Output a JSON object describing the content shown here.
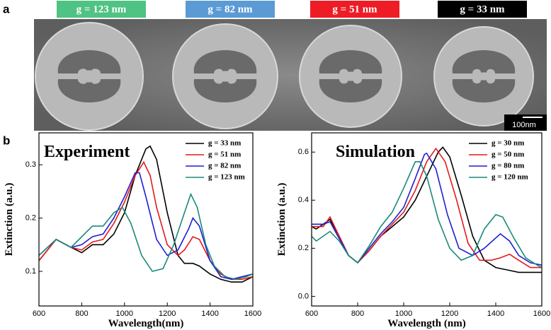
{
  "panel_labels": [
    "a",
    "b"
  ],
  "sem": {
    "labels": [
      {
        "text": "g = 123 nm",
        "color": "#4fc383"
      },
      {
        "text": "g = 82 nm",
        "color": "#5b9bd5"
      },
      {
        "text": "g = 51 nm",
        "color": "#ee1c25"
      },
      {
        "text": "g = 33 nm",
        "color": "#000000"
      }
    ],
    "scale_bar": "100nm"
  },
  "chart_data": [
    {
      "type": "line",
      "title": "Experiment",
      "x_label": "Wavelength(nm)",
      "y_label": "Extinction (a.u.)",
      "xlim": [
        600,
        1600
      ],
      "xticks": [
        600,
        800,
        1000,
        1200,
        1400,
        1600
      ],
      "ylim": [
        0.035,
        0.36
      ],
      "yticks": [
        0.1,
        0.2,
        0.3
      ],
      "series": [
        {
          "name": "g = 33 nm",
          "color": "#000000",
          "x": [
            600,
            680,
            750,
            800,
            850,
            900,
            950,
            1000,
            1050,
            1100,
            1120,
            1150,
            1200,
            1250,
            1280,
            1320,
            1350,
            1400,
            1450,
            1500,
            1550,
            1600
          ],
          "values": [
            0.12,
            0.16,
            0.145,
            0.135,
            0.15,
            0.15,
            0.17,
            0.21,
            0.28,
            0.33,
            0.335,
            0.31,
            0.21,
            0.13,
            0.115,
            0.115,
            0.11,
            0.095,
            0.085,
            0.08,
            0.08,
            0.09
          ]
        },
        {
          "name": "g = 51 nm",
          "color": "#e31a1c",
          "x": [
            600,
            680,
            750,
            800,
            850,
            900,
            950,
            1000,
            1050,
            1090,
            1120,
            1150,
            1200,
            1250,
            1280,
            1320,
            1350,
            1400,
            1450,
            1500,
            1550,
            1600
          ],
          "values": [
            0.12,
            0.16,
            0.145,
            0.14,
            0.155,
            0.16,
            0.19,
            0.23,
            0.28,
            0.305,
            0.28,
            0.22,
            0.15,
            0.13,
            0.14,
            0.165,
            0.16,
            0.12,
            0.095,
            0.085,
            0.085,
            0.09
          ]
        },
        {
          "name": "g = 82 nm",
          "color": "#1f1fd0",
          "x": [
            600,
            680,
            750,
            800,
            850,
            900,
            950,
            1000,
            1050,
            1070,
            1100,
            1150,
            1200,
            1250,
            1300,
            1320,
            1350,
            1400,
            1450,
            1500,
            1550,
            1600
          ],
          "values": [
            0.13,
            0.16,
            0.145,
            0.15,
            0.165,
            0.17,
            0.2,
            0.24,
            0.285,
            0.285,
            0.24,
            0.16,
            0.13,
            0.14,
            0.18,
            0.2,
            0.185,
            0.12,
            0.09,
            0.085,
            0.09,
            0.095
          ]
        },
        {
          "name": "g = 123 nm",
          "color": "#1a8a7a",
          "x": [
            600,
            680,
            750,
            800,
            850,
            900,
            950,
            990,
            1030,
            1080,
            1130,
            1180,
            1230,
            1280,
            1310,
            1340,
            1380,
            1420,
            1470,
            1520,
            1570,
            1600
          ],
          "values": [
            0.13,
            0.16,
            0.145,
            0.165,
            0.185,
            0.185,
            0.21,
            0.22,
            0.19,
            0.13,
            0.1,
            0.105,
            0.15,
            0.21,
            0.245,
            0.22,
            0.15,
            0.11,
            0.09,
            0.085,
            0.09,
            0.095
          ]
        }
      ]
    },
    {
      "type": "line",
      "title": "Simulation",
      "x_label": "Wavelength (nm)",
      "y_label": "Extinction (a.u.)",
      "xlim": [
        600,
        1600
      ],
      "xticks": [
        600,
        800,
        1000,
        1200,
        1400,
        1600
      ],
      "ylim": [
        -0.04,
        0.68
      ],
      "yticks": [
        {
          "value": 0,
          "label": "0.0"
        },
        0.2,
        0.4,
        0.6
      ],
      "series": [
        {
          "name": "g = 30 nm",
          "color": "#000000",
          "x": [
            600,
            620,
            650,
            680,
            720,
            760,
            800,
            850,
            900,
            950,
            1000,
            1050,
            1100,
            1150,
            1170,
            1200,
            1250,
            1300,
            1350,
            1400,
            1450,
            1500,
            1550,
            1600
          ],
          "values": [
            0.29,
            0.28,
            0.3,
            0.32,
            0.25,
            0.17,
            0.14,
            0.19,
            0.25,
            0.29,
            0.33,
            0.4,
            0.5,
            0.6,
            0.62,
            0.58,
            0.42,
            0.25,
            0.15,
            0.12,
            0.11,
            0.1,
            0.1,
            0.1
          ]
        },
        {
          "name": "g = 50 nm",
          "color": "#e31a1c",
          "x": [
            600,
            650,
            680,
            720,
            760,
            800,
            850,
            900,
            950,
            1000,
            1050,
            1100,
            1140,
            1180,
            1230,
            1280,
            1330,
            1380,
            1420,
            1460,
            1500,
            1550,
            1600
          ],
          "values": [
            0.29,
            0.29,
            0.33,
            0.25,
            0.17,
            0.14,
            0.19,
            0.25,
            0.3,
            0.35,
            0.44,
            0.56,
            0.615,
            0.56,
            0.4,
            0.22,
            0.15,
            0.15,
            0.16,
            0.175,
            0.15,
            0.12,
            0.12
          ]
        },
        {
          "name": "g = 80 nm",
          "color": "#1f1fd0",
          "x": [
            600,
            650,
            680,
            720,
            760,
            800,
            850,
            900,
            950,
            1000,
            1050,
            1090,
            1100,
            1140,
            1190,
            1240,
            1300,
            1350,
            1420,
            1460,
            1500,
            1550,
            1600
          ],
          "values": [
            0.3,
            0.3,
            0.31,
            0.24,
            0.17,
            0.14,
            0.2,
            0.26,
            0.31,
            0.37,
            0.49,
            0.59,
            0.595,
            0.53,
            0.34,
            0.2,
            0.17,
            0.2,
            0.26,
            0.23,
            0.17,
            0.14,
            0.13
          ]
        },
        {
          "name": "g = 120 nm",
          "color": "#1a8a7a",
          "x": [
            600,
            620,
            680,
            720,
            760,
            800,
            850,
            900,
            950,
            1000,
            1050,
            1070,
            1100,
            1150,
            1200,
            1250,
            1300,
            1350,
            1400,
            1430,
            1480,
            1530,
            1580,
            1600
          ],
          "values": [
            0.25,
            0.23,
            0.27,
            0.23,
            0.17,
            0.14,
            0.21,
            0.29,
            0.35,
            0.45,
            0.56,
            0.56,
            0.5,
            0.32,
            0.2,
            0.15,
            0.17,
            0.28,
            0.34,
            0.33,
            0.24,
            0.16,
            0.13,
            0.12
          ]
        }
      ]
    }
  ]
}
